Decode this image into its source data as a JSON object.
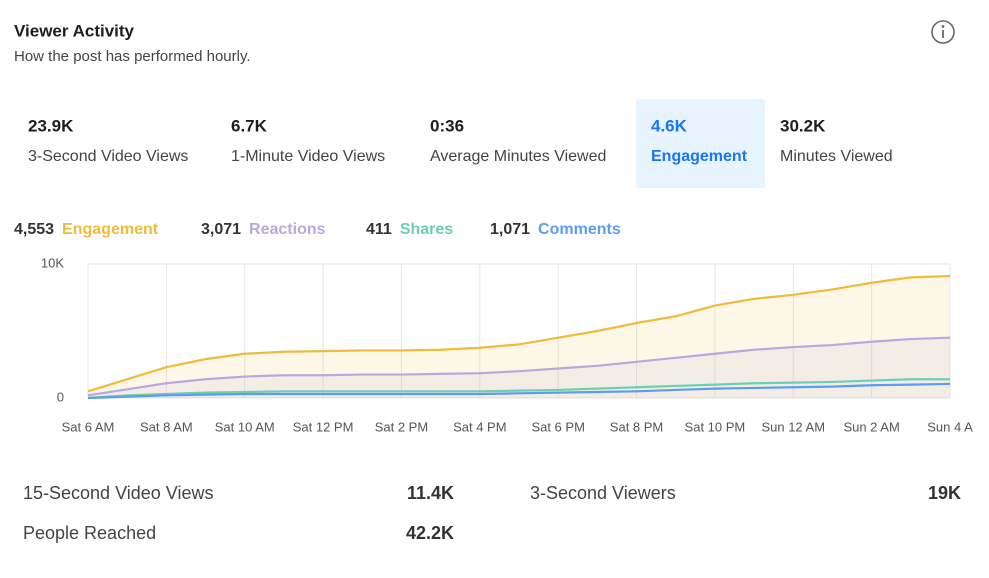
{
  "header": {
    "title": "Viewer Activity",
    "subtitle": "How the post has performed hourly."
  },
  "tabs": {
    "selected": 3,
    "items": [
      {
        "value": "23.9K",
        "label": "3-Second Video Views"
      },
      {
        "value": "6.7K",
        "label": "1-Minute Video Views"
      },
      {
        "value": "0:36",
        "label": "Average Minutes Viewed"
      },
      {
        "value": "4.6K",
        "label": "Engagement"
      },
      {
        "value": "30.2K",
        "label": "Minutes Viewed"
      }
    ]
  },
  "chart_data": {
    "type": "line",
    "categories": [
      "Sat 6 AM",
      null,
      "Sat 8 AM",
      null,
      "Sat 10 AM",
      null,
      "Sat 12 PM",
      null,
      "Sat 2 PM",
      null,
      "Sat 4 PM",
      null,
      "Sat 6 PM",
      null,
      "Sat 8 PM",
      null,
      "Sat 10 PM",
      null,
      "Sun 12 AM",
      null,
      "Sun 2 AM",
      null,
      "Sun 4 A"
    ],
    "ylim": [
      0,
      10000
    ],
    "yticks": [
      0,
      {
        "value": 10000,
        "label": "10K"
      }
    ],
    "series": [
      {
        "name": "Engagement",
        "total": "4,553",
        "color": "#f0bb3a",
        "fill": true,
        "values": [
          500,
          1400,
          2300,
          2900,
          3300,
          3450,
          3500,
          3550,
          3550,
          3600,
          3750,
          4000,
          4500,
          5000,
          5600,
          6100,
          6900,
          7400,
          7700,
          8100,
          8600,
          9000,
          9100
        ]
      },
      {
        "name": "Reactions",
        "total": "3,071",
        "color": "#b9a8e0",
        "fill": true,
        "values": [
          200,
          650,
          1100,
          1400,
          1600,
          1700,
          1700,
          1750,
          1750,
          1800,
          1850,
          2000,
          2200,
          2400,
          2700,
          3000,
          3300,
          3600,
          3800,
          3950,
          4200,
          4400,
          4500
        ]
      },
      {
        "name": "Shares",
        "total": "411",
        "color": "#6ccfb3",
        "fill": false,
        "values": [
          0,
          200,
          300,
          400,
          450,
          500,
          500,
          500,
          500,
          500,
          500,
          550,
          600,
          700,
          800,
          900,
          1000,
          1100,
          1150,
          1200,
          1300,
          1400,
          1400
        ]
      },
      {
        "name": "Comments",
        "total": "1,071",
        "color": "#5d9df0",
        "fill": false,
        "values": [
          0,
          100,
          200,
          250,
          300,
          300,
          300,
          300,
          300,
          300,
          300,
          350,
          400,
          450,
          500,
          600,
          700,
          750,
          800,
          850,
          950,
          1000,
          1050
        ]
      }
    ]
  },
  "stats": [
    {
      "label": "15-Second Video Views",
      "value": "11.4K"
    },
    {
      "label": "3-Second Viewers",
      "value": "19K"
    },
    {
      "label": "People Reached",
      "value": "42.2K"
    }
  ]
}
